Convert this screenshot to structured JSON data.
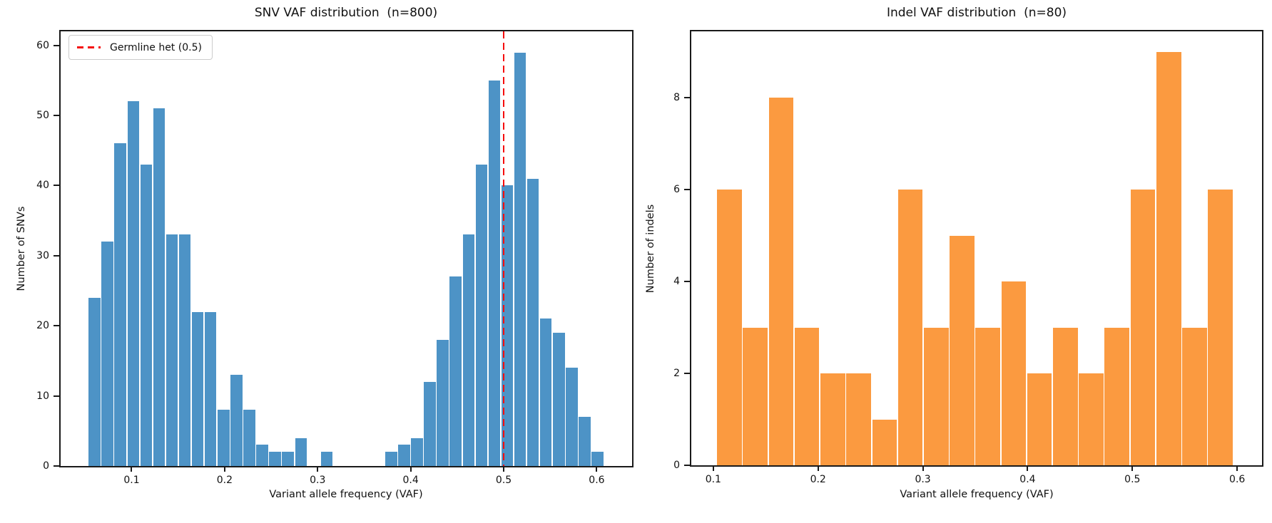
{
  "figure": {
    "background_color": "#ffffff",
    "text_color": "#111111"
  },
  "chart_data": [
    {
      "type": "bar",
      "subtype": "histogram",
      "title": "SNV VAF distribution  (n=800)",
      "xlabel": "Variant allele frequency (VAF)",
      "ylabel": "Number of SNVs",
      "n_shown_in_title": 800,
      "bar_color": "#4d93c6",
      "bin_start": 0.0532,
      "bin_width": 0.013865,
      "counts": [
        24,
        32,
        46,
        52,
        43,
        51,
        33,
        33,
        22,
        22,
        8,
        13,
        8,
        3,
        2,
        2,
        4,
        0,
        2,
        0,
        0,
        0,
        0,
        2,
        3,
        4,
        12,
        18,
        27,
        33,
        43,
        55,
        40,
        59,
        41,
        21,
        19,
        14,
        7,
        2
      ],
      "xlim": [
        0.0237,
        0.638
      ],
      "ylim": [
        0,
        62
      ],
      "xticks": [
        0.1,
        0.2,
        0.3,
        0.4,
        0.5,
        0.6
      ],
      "yticks": [
        0,
        10,
        20,
        30,
        40,
        50,
        60
      ],
      "grid": false,
      "vline": {
        "x": 0.5,
        "color": "#f50d0d",
        "style": "dashed",
        "width": 2.5
      },
      "legend": {
        "position": "upper-left",
        "entries": [
          {
            "label": "Germline het (0.5)",
            "line_color": "#f50d0d",
            "line_style": "dashed"
          }
        ]
      }
    },
    {
      "type": "bar",
      "subtype": "histogram",
      "title": "Indel VAF distribution  (n=80)",
      "xlabel": "Variant allele frequency (VAF)",
      "ylabel": "Number of indels",
      "n_shown_in_title": 80,
      "bar_color": "#fb9a40",
      "bin_start": 0.1031,
      "bin_width": 0.02466,
      "counts": [
        6,
        3,
        8,
        3,
        2,
        2,
        1,
        6,
        3,
        5,
        3,
        4,
        2,
        3,
        2,
        3,
        6,
        9,
        3,
        6
      ],
      "xlim": [
        0.079,
        0.6237
      ],
      "ylim": [
        0,
        9.45
      ],
      "xticks": [
        0.1,
        0.2,
        0.3,
        0.4,
        0.5,
        0.6
      ],
      "yticks": [
        0,
        2,
        4,
        6,
        8
      ],
      "grid": false,
      "vline": null,
      "legend": null
    }
  ]
}
